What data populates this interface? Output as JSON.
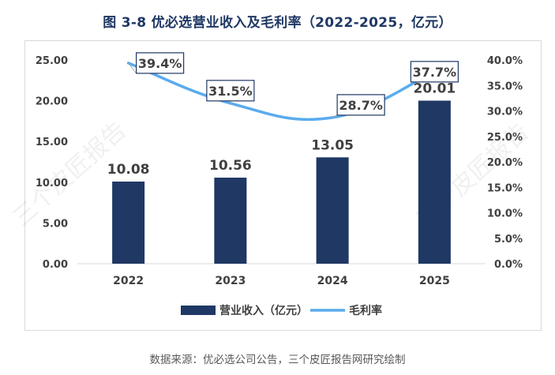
{
  "title": "图 3-8 优必选营业收入及毛利率（2022-2025，亿元）",
  "source": "数据来源：优必选公司公告，三个皮匠报告网研究绘制",
  "watermark": "三个皮匠报告",
  "colors": {
    "bar": "#1f3864",
    "line": "#5aabee",
    "title": "#1f3864"
  },
  "chart_data": {
    "type": "bar",
    "categories": [
      "2022",
      "2023",
      "2024",
      "2025"
    ],
    "series": [
      {
        "name": "营业收入（亿元）",
        "type": "bar",
        "axis": "left",
        "values": [
          10.08,
          10.56,
          13.05,
          20.01
        ],
        "labels": [
          "10.08",
          "10.56",
          "13.05",
          "20.01"
        ]
      },
      {
        "name": "毛利率",
        "type": "line",
        "axis": "right",
        "values": [
          39.4,
          31.5,
          28.7,
          37.7
        ],
        "labels": [
          "39.4%",
          "31.5%",
          "28.7%",
          "37.7%"
        ]
      }
    ],
    "y_left": {
      "min": 0,
      "max": 25,
      "ticks": [
        "0.00",
        "5.00",
        "10.00",
        "15.00",
        "20.00",
        "25.00"
      ]
    },
    "y_right": {
      "min": 0,
      "max": 40,
      "ticks": [
        "0.0%",
        "5.0%",
        "10.0%",
        "15.0%",
        "20.0%",
        "25.0%",
        "30.0%",
        "35.0%",
        "40.0%"
      ]
    },
    "legend": [
      "营业收入（亿元）",
      "毛利率"
    ],
    "legend_position": "bottom",
    "grid": false
  }
}
